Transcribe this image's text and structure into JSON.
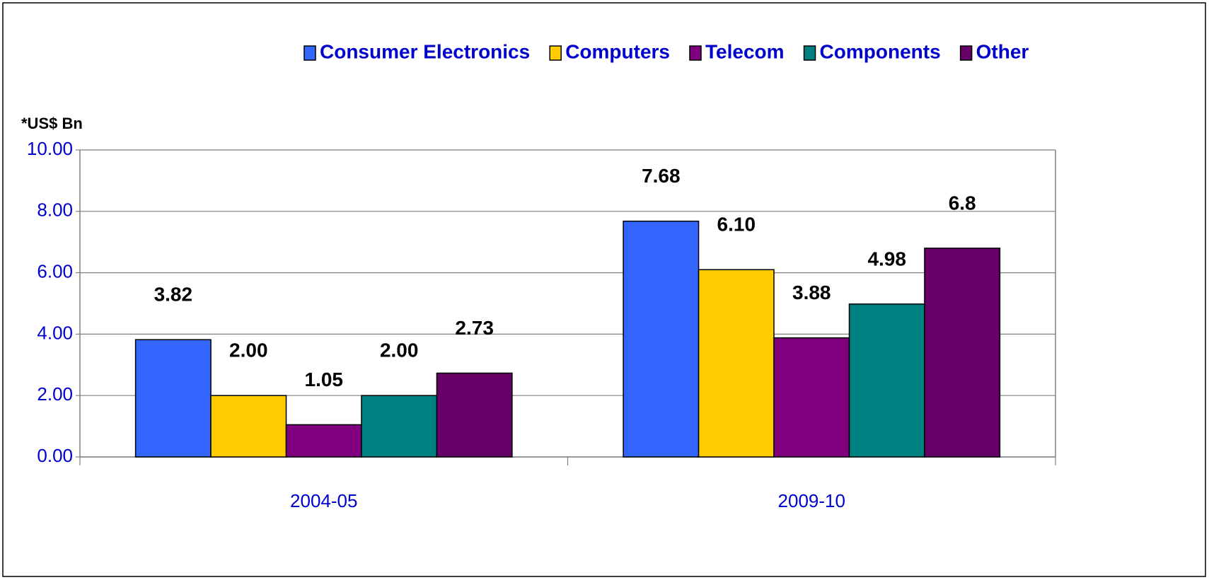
{
  "chart_data": {
    "type": "bar",
    "y_label": "*US$ Bn",
    "categories": [
      "2004-05",
      "2009-10"
    ],
    "series": [
      {
        "name": "Consumer Electronics",
        "color": "#3366FF",
        "values": [
          3.82,
          7.68
        ],
        "value_labels": [
          "3.82",
          "7.68"
        ]
      },
      {
        "name": "Computers",
        "color": "#FFCC00",
        "values": [
          2.0,
          6.1
        ],
        "value_labels": [
          "2.00",
          "6.10"
        ]
      },
      {
        "name": "Telecom",
        "color": "#800080",
        "values": [
          1.05,
          3.88
        ],
        "value_labels": [
          "1.05",
          "3.88"
        ]
      },
      {
        "name": "Components",
        "color": "#008080",
        "values": [
          2.0,
          4.98
        ],
        "value_labels": [
          "2.00",
          "4.98"
        ]
      },
      {
        "name": "Other",
        "color": "#660066",
        "values": [
          2.73,
          6.8
        ],
        "value_labels": [
          "2.73",
          "6.8"
        ]
      }
    ],
    "ylim": [
      0,
      10
    ],
    "yticks": [
      {
        "value": 0,
        "label": "0.00"
      },
      {
        "value": 2,
        "label": "2.00"
      },
      {
        "value": 4,
        "label": "4.00"
      },
      {
        "value": 6,
        "label": "6.00"
      },
      {
        "value": 8,
        "label": "8.00"
      },
      {
        "value": 10,
        "label": "10.00"
      }
    ],
    "grid": true,
    "legend": "top"
  }
}
